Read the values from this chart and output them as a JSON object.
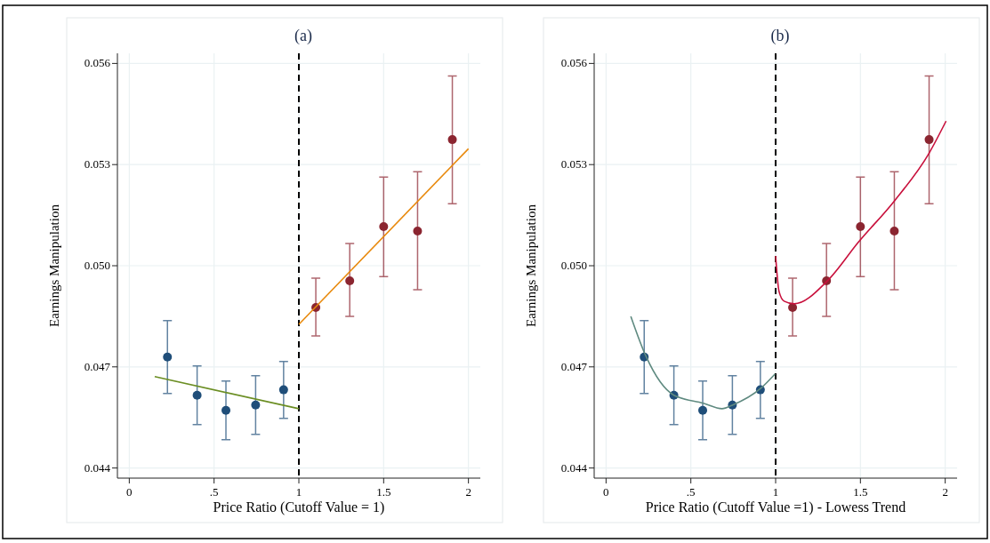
{
  "chart_data": [
    {
      "type": "scatter",
      "title": "(a)",
      "xlabel": "Price Ratio (Cutoff Value = 1)",
      "ylabel": "Earnings Manipulation",
      "xlim": [
        -0.07,
        2.07
      ],
      "ylim": [
        0.0437,
        0.0563
      ],
      "xticks": [
        0,
        {
          "value": 0.5,
          "label": ".5"
        },
        1,
        1.5,
        2
      ],
      "yticks": [
        {
          "value": 0.044,
          "label": "0.044"
        },
        {
          "value": 0.047,
          "label": "0.047"
        },
        {
          "value": 0.05,
          "label": "0.050"
        },
        {
          "value": 0.053,
          "label": "0.053"
        },
        {
          "value": 0.056,
          "label": "0.056"
        }
      ],
      "grid": true,
      "series": [
        {
          "marker": "circle",
          "color": "#1f4e79",
          "x": [
            0.225,
            0.4,
            0.57,
            0.745,
            0.91
          ],
          "values": [
            0.04729,
            0.04616,
            0.04571,
            0.04587,
            0.04632
          ],
          "errors": [
            [
              0.04621,
              0.04837
            ],
            [
              0.04529,
              0.04703
            ],
            [
              0.04484,
              0.04658
            ],
            [
              0.045,
              0.04674
            ],
            [
              0.04547,
              0.04716
            ]
          ]
        },
        {
          "marker": "circle",
          "color": "#8b2530",
          "x": [
            1.1,
            1.3,
            1.5,
            1.7,
            1.905
          ],
          "values": [
            0.04876,
            0.04955,
            0.05116,
            0.05103,
            0.05374
          ],
          "errors": [
            [
              0.04792,
              0.04963
            ],
            [
              0.0485,
              0.05066
            ],
            [
              0.04968,
              0.05263
            ],
            [
              0.04929,
              0.05279
            ],
            [
              0.05184,
              0.05563
            ]
          ]
        },
        {
          "type": "line",
          "color": "#6b8e23",
          "x": [
            0.15,
            1.0
          ],
          "values": [
            0.04671,
            0.04576
          ]
        },
        {
          "type": "line",
          "color": "#e8890c",
          "x": [
            1.0,
            2.0
          ],
          "values": [
            0.04826,
            0.05347
          ]
        }
      ],
      "ref_lines": [
        {
          "axis": "x",
          "value": 1,
          "color": "#000000",
          "line_style": "dashed"
        }
      ]
    },
    {
      "type": "scatter",
      "title": "(b)",
      "xlabel": "Price Ratio (Cutoff Value =1) - Lowess Trend",
      "ylabel": "Earnings Manipulation",
      "xlim": [
        -0.07,
        2.07
      ],
      "ylim": [
        0.0437,
        0.0563
      ],
      "xticks": [
        0,
        {
          "value": 0.5,
          "label": ".5"
        },
        1,
        1.5,
        2
      ],
      "yticks": [
        {
          "value": 0.044,
          "label": "0.044"
        },
        {
          "value": 0.047,
          "label": "0.047"
        },
        {
          "value": 0.05,
          "label": "0.050"
        },
        {
          "value": 0.053,
          "label": "0.053"
        },
        {
          "value": 0.056,
          "label": "0.056"
        }
      ],
      "grid": true,
      "series": [
        {
          "marker": "circle",
          "color": "#1f4e79",
          "x": [
            0.225,
            0.4,
            0.57,
            0.745,
            0.91
          ],
          "values": [
            0.04729,
            0.04616,
            0.04571,
            0.04587,
            0.04632
          ],
          "errors": [
            [
              0.04621,
              0.04837
            ],
            [
              0.04529,
              0.04703
            ],
            [
              0.04484,
              0.04658
            ],
            [
              0.045,
              0.04674
            ],
            [
              0.04547,
              0.04716
            ]
          ]
        },
        {
          "marker": "circle",
          "color": "#8b2530",
          "x": [
            1.1,
            1.3,
            1.5,
            1.7,
            1.905
          ],
          "values": [
            0.04876,
            0.04955,
            0.05116,
            0.05103,
            0.05374
          ],
          "errors": [
            [
              0.04792,
              0.04963
            ],
            [
              0.0485,
              0.05066
            ],
            [
              0.04968,
              0.05263
            ],
            [
              0.04929,
              0.05279
            ],
            [
              0.05184,
              0.05563
            ]
          ]
        },
        {
          "type": "line",
          "color": "#5f8a80",
          "x": [
            0.146,
            0.235,
            0.4,
            0.574,
            0.684,
            0.747,
            0.914,
            0.997
          ],
          "values": [
            0.0485,
            0.04732,
            0.04616,
            0.04592,
            0.04576,
            0.04587,
            0.04637,
            0.04679
          ]
        },
        {
          "type": "line",
          "color": "#c8103c",
          "x": [
            1.0,
            1.02,
            1.05,
            1.11,
            1.305,
            1.49,
            1.7,
            1.905,
            2.005
          ],
          "values": [
            0.05029,
            0.04924,
            0.04895,
            0.04887,
            0.04955,
            0.05071,
            0.05192,
            0.05334,
            0.05429
          ]
        }
      ],
      "ref_lines": [
        {
          "axis": "x",
          "value": 1,
          "color": "#000000",
          "line_style": "dashed"
        }
      ]
    }
  ]
}
